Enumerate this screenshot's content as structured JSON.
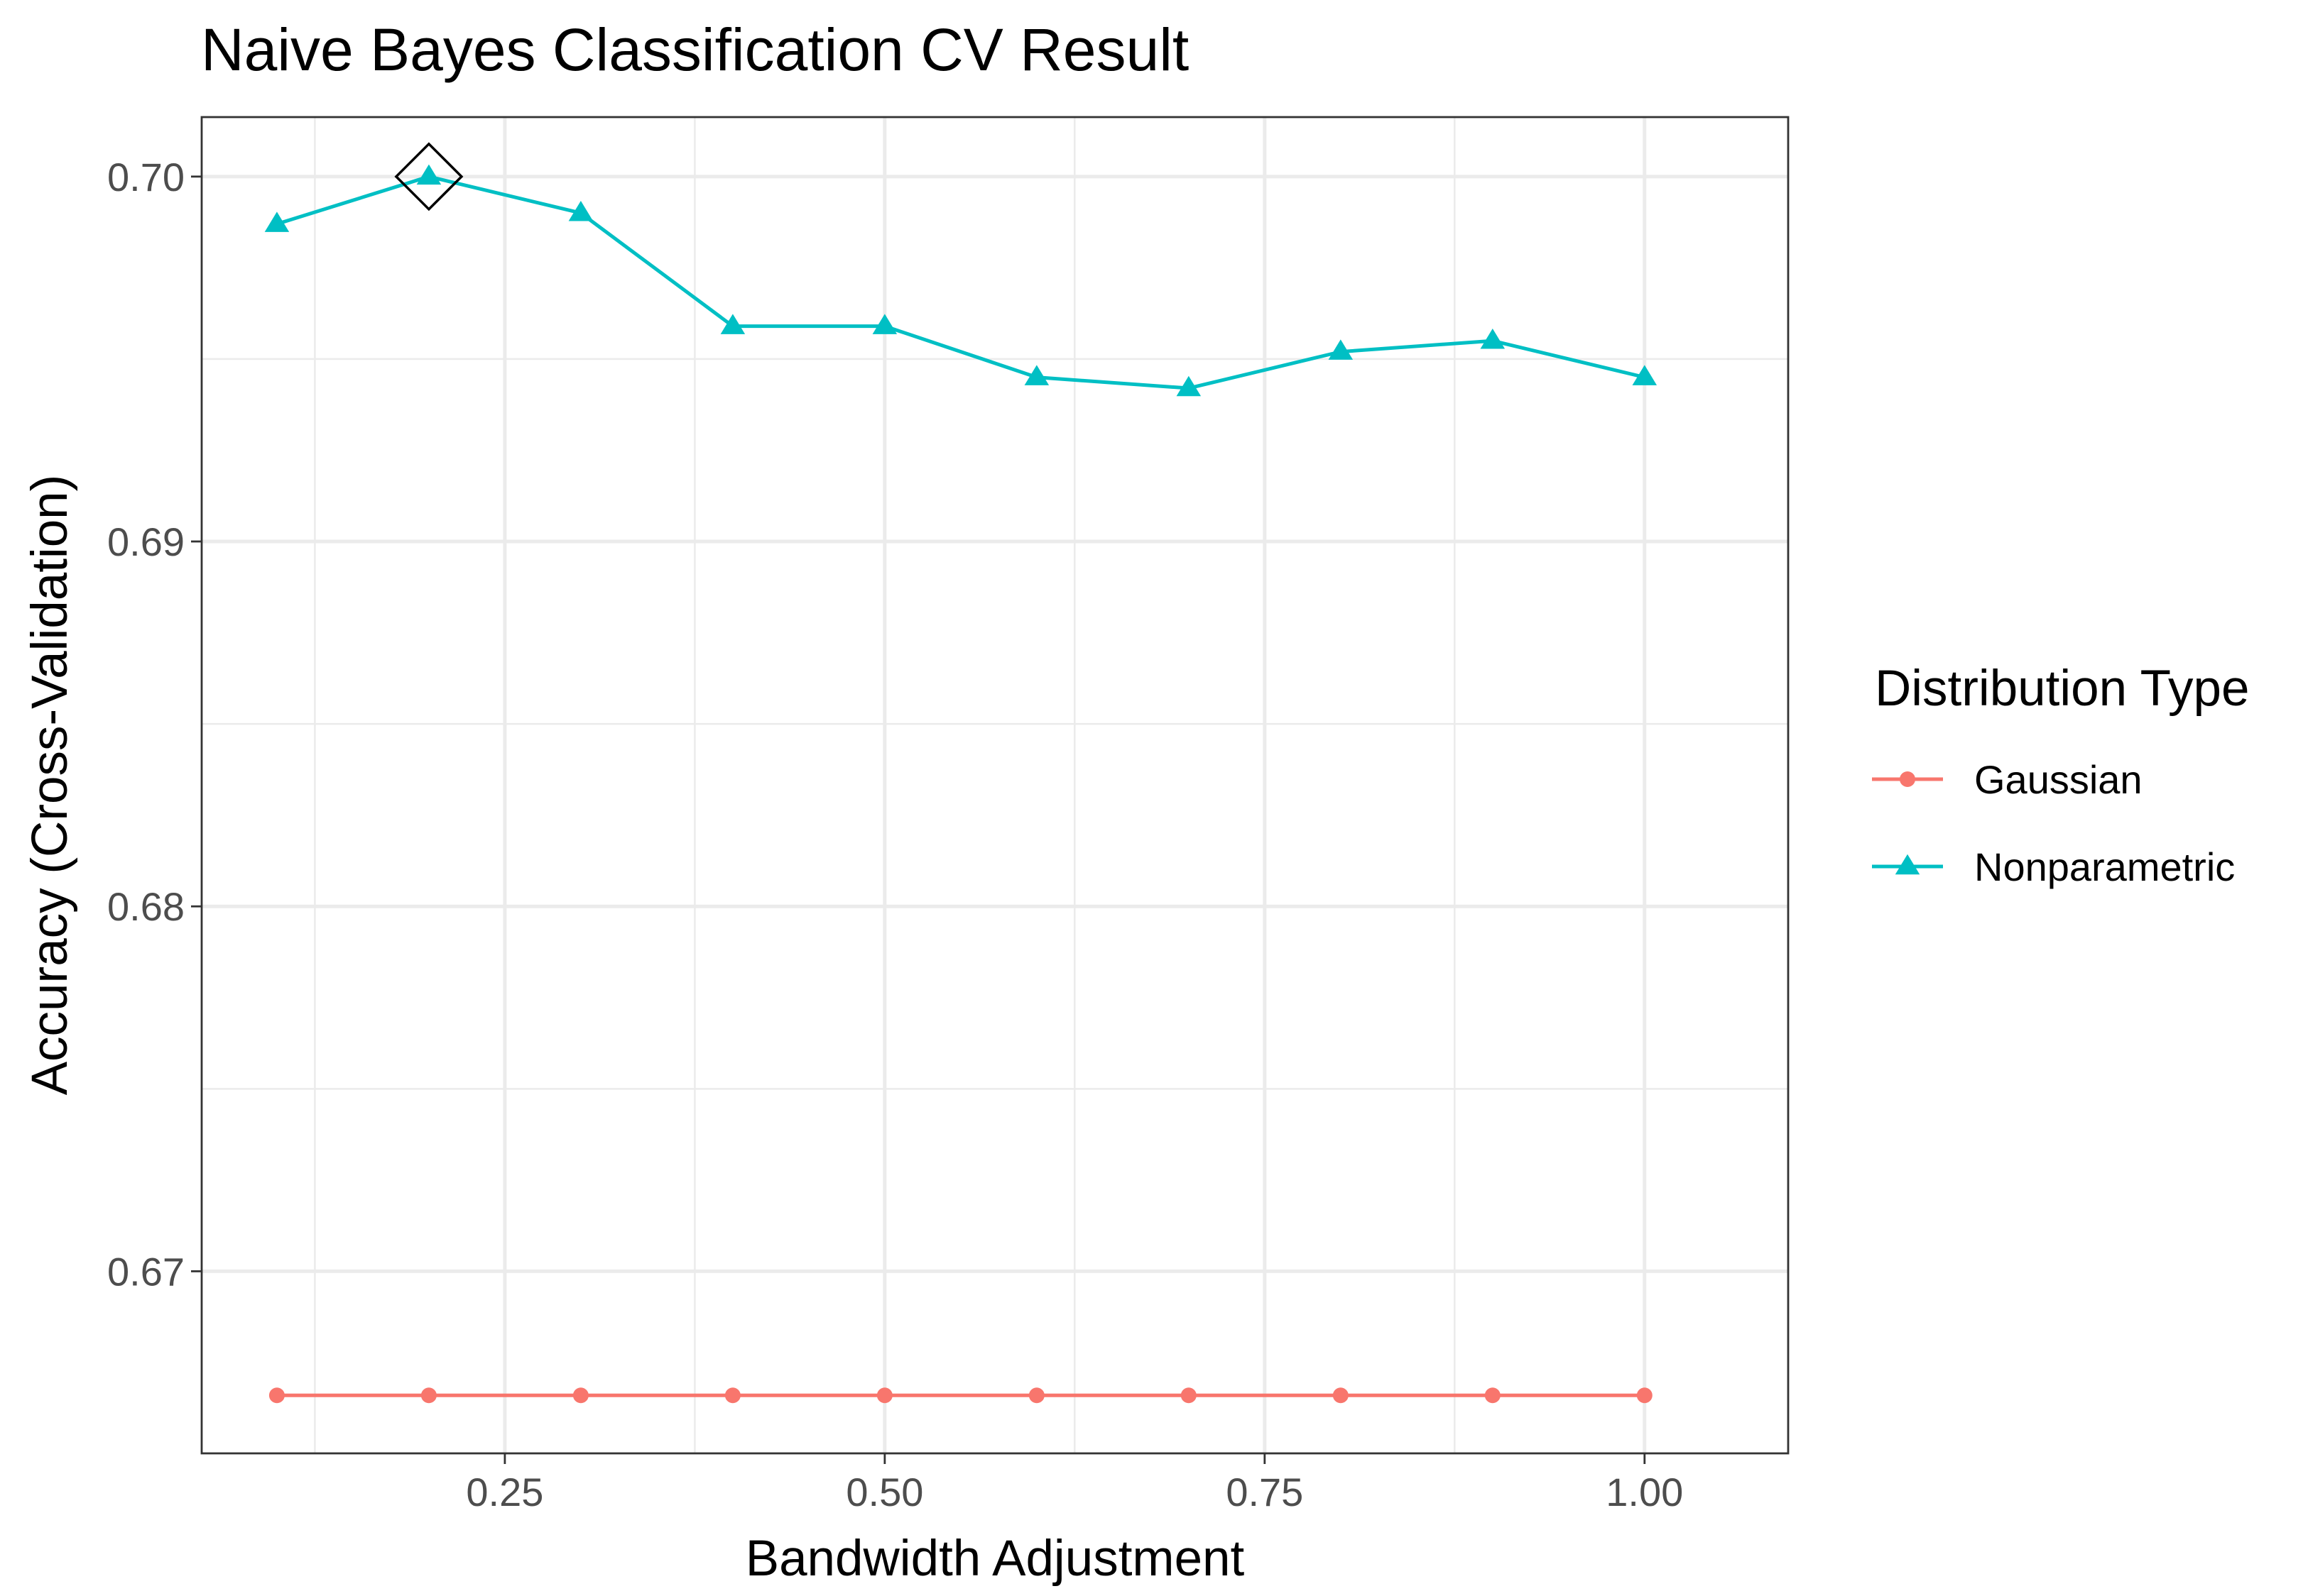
{
  "chart_data": {
    "type": "line",
    "title": "Naive Bayes Classification CV Result",
    "xlabel": "Bandwidth Adjustment",
    "ylabel": "Accuracy (Cross-Validation)",
    "x": [
      0.1,
      0.2,
      0.3,
      0.4,
      0.5,
      0.6,
      0.7,
      0.8,
      0.9,
      1.0
    ],
    "xlim": [
      0.0505,
      1.0945
    ],
    "ylim": [
      0.66501,
      0.70163
    ],
    "xticks": [
      0.25,
      0.5,
      0.75,
      1.0
    ],
    "xtick_labels": [
      "0.25",
      "0.50",
      "0.75",
      "1.00"
    ],
    "yticks": [
      0.67,
      0.68,
      0.69,
      0.7
    ],
    "ytick_labels": [
      "0.67",
      "0.68",
      "0.69",
      "0.70"
    ],
    "grid": true,
    "legend": {
      "title": "Distribution Type",
      "position": "right"
    },
    "series": [
      {
        "name": "Gaussian",
        "color": "#F8766D",
        "marker": "circle",
        "values": [
          0.6666,
          0.6666,
          0.6666,
          0.6666,
          0.6666,
          0.6666,
          0.6666,
          0.6666,
          0.6666,
          0.6666
        ]
      },
      {
        "name": "Nonparametric",
        "color": "#00BFC4",
        "marker": "triangle",
        "values": [
          0.6987,
          0.7,
          0.699,
          0.6959,
          0.6959,
          0.6945,
          0.6942,
          0.6952,
          0.6955,
          0.6945
        ]
      }
    ],
    "highlight": {
      "marker": "diamond",
      "x": 0.2,
      "y": 0.7
    }
  }
}
